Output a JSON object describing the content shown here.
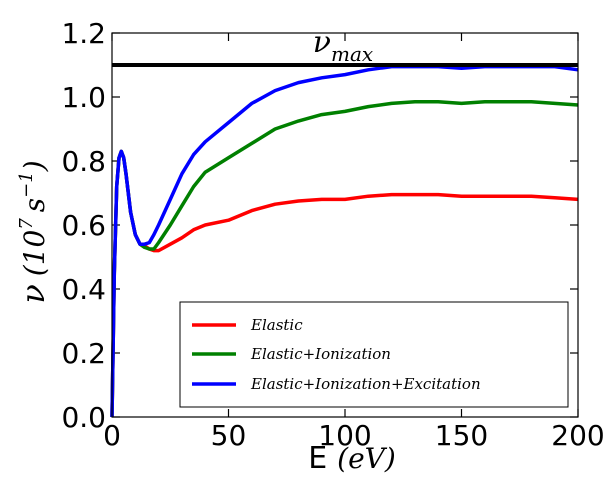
{
  "chart_data": {
    "type": "line",
    "xlabel": "E (eV)",
    "ylabel": "ν (10⁷ s⁻¹)",
    "xlim": [
      0,
      200
    ],
    "ylim": [
      0,
      1.2
    ],
    "xticks": [
      0,
      50,
      100,
      150,
      200
    ],
    "yticks": [
      0.0,
      0.2,
      0.4,
      0.6,
      0.8,
      1.0,
      1.2
    ],
    "xtick_labels": [
      "0",
      "50",
      "100",
      "150",
      "200"
    ],
    "ytick_labels": [
      "0.0",
      "0.2",
      "0.4",
      "0.6",
      "0.8",
      "1.0",
      "1.2"
    ],
    "grid": false,
    "legend_position": "lower-right",
    "annotation": {
      "text_main": "ν",
      "text_sub": "max",
      "value": 1.1
    },
    "series": [
      {
        "name": "Elastic",
        "color": "#ff0000",
        "x": [
          0,
          1,
          2,
          3,
          4,
          5,
          6,
          7,
          8,
          10,
          12,
          14,
          16,
          18,
          20,
          25,
          30,
          35,
          40,
          50,
          60,
          70,
          80,
          90,
          100,
          110,
          120,
          130,
          140,
          150,
          160,
          170,
          180,
          190,
          200
        ],
        "y": [
          0,
          0.45,
          0.72,
          0.81,
          0.83,
          0.81,
          0.76,
          0.7,
          0.64,
          0.57,
          0.54,
          0.535,
          0.525,
          0.52,
          0.52,
          0.54,
          0.56,
          0.585,
          0.6,
          0.615,
          0.645,
          0.665,
          0.675,
          0.68,
          0.68,
          0.69,
          0.695,
          0.695,
          0.695,
          0.69,
          0.69,
          0.69,
          0.69,
          0.685,
          0.68
        ]
      },
      {
        "name": "Elastic+Ionization",
        "color": "#008000",
        "x": [
          0,
          1,
          2,
          3,
          4,
          5,
          6,
          7,
          8,
          10,
          12,
          14,
          16,
          18,
          20,
          25,
          30,
          35,
          40,
          50,
          60,
          70,
          80,
          90,
          100,
          110,
          120,
          130,
          140,
          150,
          160,
          170,
          180,
          190,
          200
        ],
        "y": [
          0,
          0.45,
          0.72,
          0.81,
          0.83,
          0.81,
          0.76,
          0.7,
          0.64,
          0.57,
          0.54,
          0.53,
          0.525,
          0.525,
          0.545,
          0.6,
          0.66,
          0.72,
          0.765,
          0.81,
          0.855,
          0.9,
          0.925,
          0.945,
          0.955,
          0.97,
          0.98,
          0.985,
          0.985,
          0.98,
          0.985,
          0.985,
          0.985,
          0.98,
          0.975
        ]
      },
      {
        "name": "Elastic+Ionization+Excitation",
        "color": "#0000ff",
        "x": [
          0,
          1,
          2,
          3,
          4,
          5,
          6,
          7,
          8,
          10,
          12,
          14,
          16,
          18,
          20,
          25,
          30,
          35,
          40,
          50,
          60,
          70,
          80,
          90,
          100,
          110,
          120,
          130,
          140,
          150,
          160,
          170,
          180,
          190,
          200
        ],
        "y": [
          0,
          0.45,
          0.72,
          0.81,
          0.83,
          0.81,
          0.76,
          0.7,
          0.64,
          0.57,
          0.54,
          0.54,
          0.545,
          0.57,
          0.6,
          0.68,
          0.76,
          0.82,
          0.86,
          0.92,
          0.98,
          1.02,
          1.045,
          1.06,
          1.07,
          1.085,
          1.095,
          1.095,
          1.095,
          1.09,
          1.095,
          1.095,
          1.095,
          1.095,
          1.085
        ]
      }
    ]
  },
  "legend": {
    "items": [
      "Elastic",
      "Elastic+Ionization",
      "Elastic+Ionization+Excitation"
    ]
  },
  "labels": {
    "xlabel_main": "E",
    "xlabel_unit": "(eV)",
    "ylabel_symbol": "ν",
    "ylabel_open": "(10",
    "ylabel_exp": "7",
    "ylabel_unit": "s",
    "ylabel_unit_exp": "−1",
    "ylabel_close": ")"
  }
}
